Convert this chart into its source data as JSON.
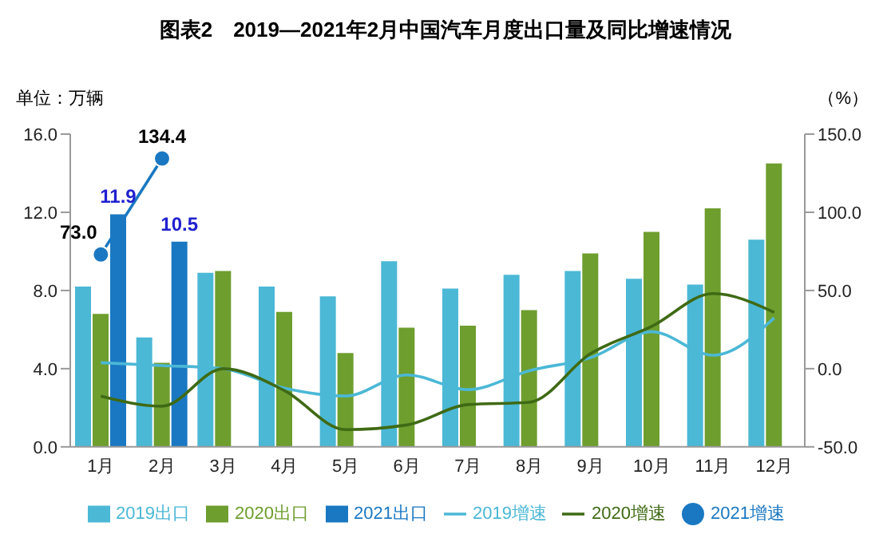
{
  "chart_data": {
    "type": "bar",
    "title": "图表2　2019—2021年2月中国汽车月度出口量及同比增速情况",
    "ylabel": "单位：万辆",
    "y2label": "（%）",
    "categories": [
      "1月",
      "2月",
      "3月",
      "4月",
      "5月",
      "6月",
      "7月",
      "8月",
      "9月",
      "10月",
      "11月",
      "12月"
    ],
    "series": [
      {
        "name": "2019出口",
        "color": "#4bb8d6",
        "values": [
          8.2,
          5.6,
          8.9,
          8.2,
          7.7,
          9.5,
          8.1,
          8.8,
          9.0,
          8.6,
          8.3,
          10.6
        ]
      },
      {
        "name": "2020出口",
        "color": "#6e9e2e",
        "values": [
          6.8,
          4.3,
          9.0,
          6.9,
          4.8,
          6.1,
          6.2,
          7.0,
          9.9,
          11.0,
          12.2,
          14.5
        ]
      },
      {
        "name": "2021出口",
        "color": "#1a78c2",
        "values": [
          11.9,
          10.5,
          null,
          null,
          null,
          null,
          null,
          null,
          null,
          null,
          null,
          null
        ],
        "value_labels": [
          "11.9",
          "10.5",
          null,
          null,
          null,
          null,
          null,
          null,
          null,
          null,
          null,
          null
        ]
      },
      {
        "name": "2019增速",
        "type": "line",
        "axis": "y2",
        "marker": "none",
        "color": "#4bb8d6",
        "values": [
          3.8,
          2,
          0,
          -12.5,
          -17.5,
          -4,
          -13.4,
          -1.3,
          7,
          23.6,
          8.6,
          32.4
        ]
      },
      {
        "name": "2020增速",
        "type": "line",
        "axis": "y2",
        "marker": "none",
        "color": "#3f6a14",
        "values": [
          -17.5,
          -24,
          0,
          -14,
          -39,
          -36,
          -23,
          -21.5,
          9.6,
          27,
          48,
          36
        ]
      },
      {
        "name": "2021增速",
        "type": "line",
        "axis": "y2",
        "marker": "circle",
        "color": "#1a78c2",
        "values": [
          73.0,
          134.4,
          null,
          null,
          null,
          null,
          null,
          null,
          null,
          null,
          null,
          null
        ],
        "value_labels": [
          "73.0",
          "134.4",
          null,
          null,
          null,
          null,
          null,
          null,
          null,
          null,
          null,
          null
        ]
      }
    ],
    "ylim": [
      0,
      16
    ],
    "yticks": [
      "0.0",
      "4.0",
      "8.0",
      "12.0",
      "16.0"
    ],
    "y2lim": [
      -50,
      150
    ],
    "y2ticks": [
      "-50.0",
      "0.0",
      "50.0",
      "100.0",
      "150.0"
    ],
    "grid": false,
    "legend": "bottom"
  }
}
